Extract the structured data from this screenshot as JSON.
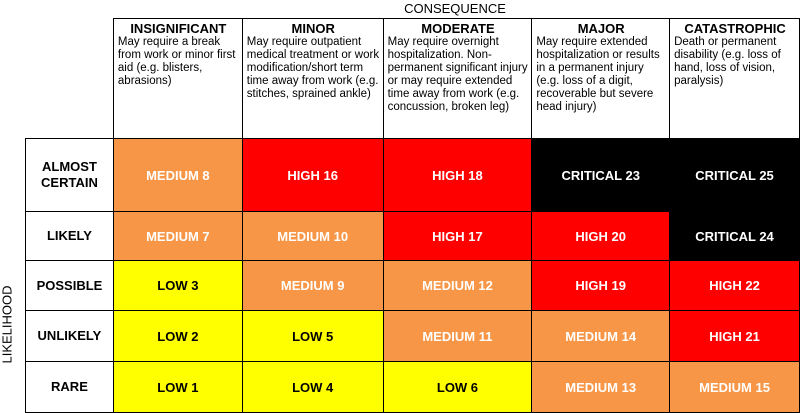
{
  "axis": {
    "top": "CONSEQUENCE",
    "left": "LIKELIHOOD"
  },
  "consequences": [
    {
      "name": "INSIGNIFICANT",
      "desc": "May require a break from work or minor first aid (e.g. blisters, abrasions)"
    },
    {
      "name": "MINOR",
      "desc": "May require outpatient medical treatment or work modification/short term time away from work (e.g. stitches, sprained ankle)"
    },
    {
      "name": "MODERATE",
      "desc": "May require overnight hospitalization. Non-permanent significant injury or may require extended time away from work (e.g. concussion, broken leg)"
    },
    {
      "name": "MAJOR",
      "desc": "May require extended hospitalization or results in a permanent injury (e.g. loss of a digit, recoverable but severe head injury)"
    },
    {
      "name": "CATASTROPHIC",
      "desc": "Death or permanent disability (e.g. loss of hand, loss of vision, paralysis)"
    }
  ],
  "rows": [
    {
      "label": "ALMOST CERTAIN",
      "cells": [
        {
          "text": "MEDIUM 8",
          "level": "medium"
        },
        {
          "text": "HIGH 16",
          "level": "high"
        },
        {
          "text": "HIGH 18",
          "level": "high"
        },
        {
          "text": "CRITICAL 23",
          "level": "critical"
        },
        {
          "text": "CRITICAL 25",
          "level": "critical"
        }
      ]
    },
    {
      "label": "LIKELY",
      "cells": [
        {
          "text": "MEDIUM 7",
          "level": "medium"
        },
        {
          "text": "MEDIUM 10",
          "level": "medium"
        },
        {
          "text": "HIGH 17",
          "level": "high"
        },
        {
          "text": "HIGH 20",
          "level": "high"
        },
        {
          "text": "CRITICAL 24",
          "level": "critical"
        }
      ]
    },
    {
      "label": "POSSIBLE",
      "cells": [
        {
          "text": "LOW 3",
          "level": "low"
        },
        {
          "text": "MEDIUM 9",
          "level": "medium"
        },
        {
          "text": "MEDIUM 12",
          "level": "medium"
        },
        {
          "text": "HIGH 19",
          "level": "high"
        },
        {
          "text": "HIGH 22",
          "level": "high"
        }
      ]
    },
    {
      "label": "UNLIKELY",
      "cells": [
        {
          "text": "LOW 2",
          "level": "low"
        },
        {
          "text": "LOW 5",
          "level": "low"
        },
        {
          "text": "MEDIUM 11",
          "level": "medium"
        },
        {
          "text": "MEDIUM 14",
          "level": "medium"
        },
        {
          "text": "HIGH 21",
          "level": "high"
        }
      ]
    },
    {
      "label": "RARE",
      "cells": [
        {
          "text": "LOW 1",
          "level": "low"
        },
        {
          "text": "LOW 4",
          "level": "low"
        },
        {
          "text": "LOW 6",
          "level": "low"
        },
        {
          "text": "MEDIUM 13",
          "level": "medium"
        },
        {
          "text": "MEDIUM 15",
          "level": "medium"
        }
      ]
    }
  ],
  "colors": {
    "low": "#ffff00",
    "medium": "#f79646",
    "high": "#ff0000",
    "critical": "#000000"
  }
}
